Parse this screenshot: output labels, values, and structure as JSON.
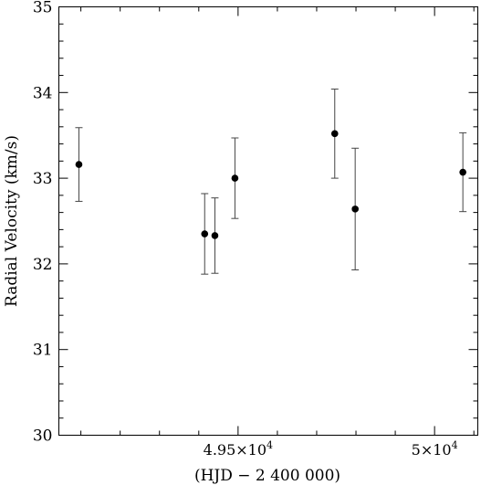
{
  "chart_data": {
    "type": "scatter",
    "xlabel": "(HJD − 2 400 000)",
    "ylabel": "Radial Velocity (km/s)",
    "xlim": [
      49044,
      50110
    ],
    "ylim": [
      30,
      35
    ],
    "x_ticks": [
      {
        "value": 49500,
        "mantissa": "4.95",
        "exp": "4"
      },
      {
        "value": 50000,
        "mantissa": "5",
        "exp": "4"
      }
    ],
    "y_ticks": [
      30,
      31,
      32,
      33,
      34,
      35
    ],
    "grid": false,
    "legend": "none",
    "series": [
      {
        "marker": "filled-circle",
        "error_bars": true,
        "points": [
          {
            "x": 49095,
            "y": 33.16,
            "yerr": 0.43
          },
          {
            "x": 49415,
            "y": 32.35,
            "yerr": 0.47
          },
          {
            "x": 49441,
            "y": 32.33,
            "yerr": 0.44
          },
          {
            "x": 49492,
            "y": 33.0,
            "yerr": 0.47
          },
          {
            "x": 49746,
            "y": 33.52,
            "yerr": 0.52
          },
          {
            "x": 49798,
            "y": 32.64,
            "yerr": 0.71
          },
          {
            "x": 50072,
            "y": 33.07,
            "yerr": 0.46
          }
        ]
      }
    ]
  }
}
